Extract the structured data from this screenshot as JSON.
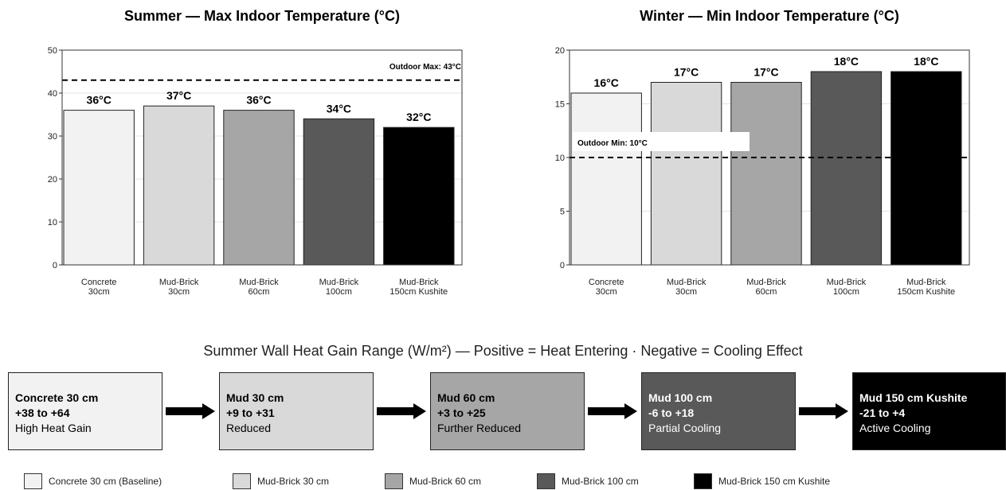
{
  "colors": {
    "concrete": "#f2f2f2",
    "mud30": "#d9d9d9",
    "mud60": "#a6a6a6",
    "mud100": "#595959",
    "mud150": "#000000",
    "text_dark": "#000000",
    "text_light": "#ffffff"
  },
  "chart_data": [
    {
      "type": "bar",
      "title": "Summer — Max Indoor Temperature (°C)",
      "categories": [
        [
          "Concrete",
          "30cm"
        ],
        [
          "Mud-Brick",
          "30cm"
        ],
        [
          "Mud-Brick",
          "60cm"
        ],
        [
          "Mud-Brick",
          "100cm"
        ],
        [
          "Mud-Brick",
          "150cm Kushite"
        ]
      ],
      "values": [
        36,
        37,
        36,
        34,
        32
      ],
      "data_labels": [
        "36°C",
        "37°C",
        "36°C",
        "34°C",
        "32°C"
      ],
      "ylim": [
        0,
        50
      ],
      "yticks": [
        0,
        10,
        20,
        30,
        40,
        50
      ],
      "reference_line": {
        "value": 43,
        "label": "Outdoor Max: 43°C",
        "style": "dashed"
      },
      "grid": "horizontal"
    },
    {
      "type": "bar",
      "title": "Winter — Min Indoor Temperature (°C)",
      "categories": [
        [
          "Concrete",
          "30cm"
        ],
        [
          "Mud-Brick",
          "30cm"
        ],
        [
          "Mud-Brick",
          "60cm"
        ],
        [
          "Mud-Brick",
          "100cm"
        ],
        [
          "Mud-Brick",
          "150cm Kushite"
        ]
      ],
      "values": [
        16,
        17,
        17,
        18,
        18
      ],
      "data_labels": [
        "16°C",
        "17°C",
        "17°C",
        "18°C",
        "18°C"
      ],
      "ylim": [
        0,
        20
      ],
      "yticks": [
        0,
        5,
        10,
        15,
        20
      ],
      "reference_line": {
        "value": 10,
        "label": "Outdoor Min: 10°C",
        "style": "dashed"
      },
      "grid": "horizontal"
    }
  ],
  "flow": {
    "title": "Summer Wall Heat Gain Range (W/m²) — Positive = Heat Entering · Negative = Cooling Effect",
    "steps": [
      {
        "name": "Concrete 30 cm",
        "range": "+38 to +64",
        "label": "High Heat Gain",
        "color": "#f2f2f2",
        "text": "#000000"
      },
      {
        "name": "Mud 30 cm",
        "range": "+9 to +31",
        "label": "Reduced",
        "color": "#d9d9d9",
        "text": "#000000"
      },
      {
        "name": "Mud 60 cm",
        "range": "+3 to +25",
        "label": "Further Reduced",
        "color": "#a6a6a6",
        "text": "#000000"
      },
      {
        "name": "Mud 100 cm",
        "range": "-6 to +18",
        "label": "Partial Cooling",
        "color": "#595959",
        "text": "#ffffff"
      },
      {
        "name": "Mud 150 cm Kushite",
        "range": "-21 to +4",
        "label": "Active Cooling",
        "color": "#000000",
        "text": "#ffffff"
      }
    ]
  },
  "legend": [
    {
      "label": "Concrete 30 cm (Baseline)",
      "color": "#f2f2f2"
    },
    {
      "label": "Mud-Brick 30 cm",
      "color": "#d9d9d9"
    },
    {
      "label": "Mud-Brick 60 cm",
      "color": "#a6a6a6"
    },
    {
      "label": "Mud-Brick 100 cm",
      "color": "#595959"
    },
    {
      "label": "Mud-Brick 150 cm Kushite",
      "color": "#000000"
    }
  ]
}
